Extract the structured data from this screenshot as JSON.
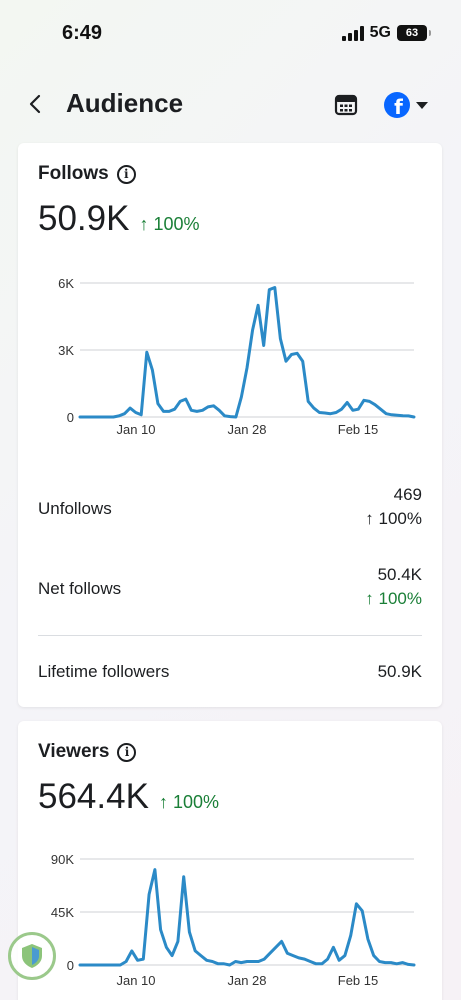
{
  "status_bar": {
    "time": "6:49",
    "network": "5G",
    "battery": "63"
  },
  "nav": {
    "title": "Audience",
    "back_icon": "back-arrow-icon",
    "calendar_icon": "calendar-icon",
    "account_icon": "facebook-icon"
  },
  "follows": {
    "title": "Follows",
    "value": "50.9K",
    "change": "↑ 100%",
    "chart_data": {
      "type": "line",
      "x_ticks": [
        "Jan 10",
        "Jan 28",
        "Feb 15"
      ],
      "y_ticks": [
        "6K",
        "3K",
        "0"
      ],
      "ylim": [
        0,
        6000
      ],
      "series": [
        {
          "values": [
            0,
            0,
            0,
            0,
            0,
            0,
            0,
            50,
            150,
            400,
            200,
            100,
            2900,
            2100,
            600,
            250,
            250,
            350,
            700,
            800,
            300,
            250,
            300,
            450,
            500,
            300,
            50,
            20,
            0,
            900,
            2200,
            3900,
            5000,
            3200,
            5700,
            5800,
            3500,
            2500,
            2800,
            2850,
            2500,
            700,
            400,
            200,
            180,
            150,
            200,
            350,
            650,
            300,
            350,
            750,
            700,
            550,
            350,
            150,
            100,
            80,
            60,
            50,
            0
          ]
        }
      ]
    },
    "stats": [
      {
        "label": "Unfollows",
        "value": "469",
        "change": "↑ 100%"
      },
      {
        "label": "Net follows",
        "value": "50.4K",
        "change": "↑ 100%"
      }
    ],
    "lifetime": {
      "label": "Lifetime followers",
      "value": "50.9K"
    }
  },
  "viewers": {
    "title": "Viewers",
    "value": "564.4K",
    "change": "↑ 100%",
    "chart_data": {
      "type": "line",
      "x_ticks": [
        "Jan 10",
        "Jan 28",
        "Feb 15"
      ],
      "y_ticks": [
        "90K",
        "45K",
        "0"
      ],
      "ylim": [
        0,
        90000
      ],
      "series": [
        {
          "values": [
            0,
            0,
            0,
            0,
            0,
            0,
            0,
            0,
            3000,
            12000,
            4000,
            5000,
            60000,
            81000,
            30000,
            15000,
            8000,
            20000,
            75000,
            28000,
            12000,
            8000,
            4000,
            3000,
            1000,
            1000,
            0,
            3000,
            2000,
            3000,
            3000,
            3000,
            5000,
            10000,
            15000,
            20000,
            10000,
            8000,
            6000,
            5000,
            3000,
            1000,
            1000,
            5000,
            15000,
            4000,
            8000,
            25000,
            52000,
            46000,
            22000,
            8000,
            3000,
            2000,
            2000,
            1000,
            2000,
            500,
            0
          ]
        }
      ]
    }
  }
}
